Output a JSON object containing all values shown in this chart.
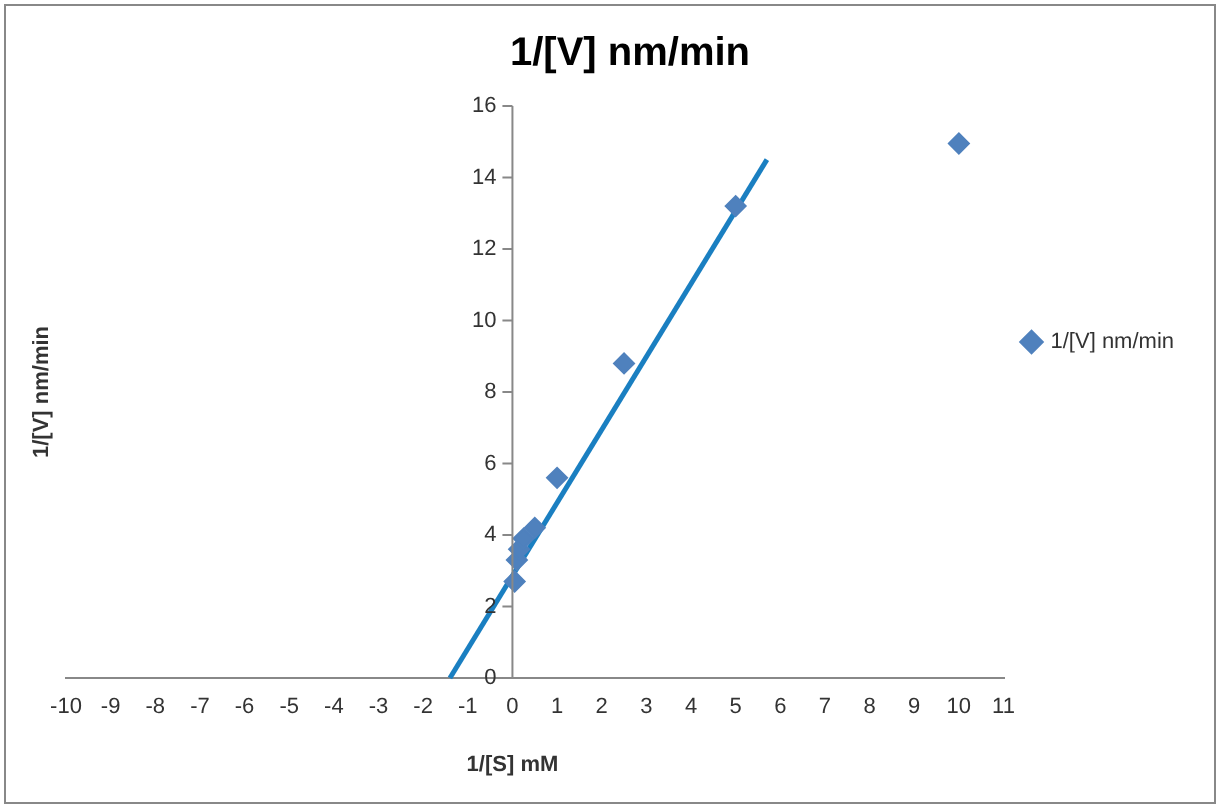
{
  "chart_data": {
    "type": "scatter",
    "title": "1/[V] nm/min",
    "xlabel": "1/[S] mM",
    "ylabel": "1/[V] nm/min",
    "x": [
      0.05,
      0.1,
      0.15,
      0.25,
      0.5,
      1,
      2.5,
      5,
      10
    ],
    "series": [
      {
        "name": "1/[V] nm/min",
        "color": "#4f81bd",
        "values": [
          2.7,
          3.3,
          3.6,
          3.9,
          4.2,
          5.6,
          8.8,
          13.2,
          14.95
        ],
        "marker": "diamond"
      },
      {
        "type": "line",
        "color": "#1a7fc1",
        "x": [
          -1.4,
          5.7
        ],
        "values": [
          0,
          14.5
        ],
        "marker": "none",
        "line_style": "solid"
      }
    ],
    "xlim": [
      -10,
      11
    ],
    "xticks": [
      -10,
      -9,
      -8,
      -7,
      -6,
      -5,
      -4,
      -3,
      -2,
      -1,
      0,
      1,
      2,
      3,
      4,
      5,
      6,
      7,
      8,
      9,
      10,
      11
    ],
    "ylim": [
      0,
      16
    ],
    "yticks": [
      0,
      2,
      4,
      6,
      8,
      10,
      12,
      14,
      16
    ],
    "grid": false,
    "legend": "right"
  }
}
